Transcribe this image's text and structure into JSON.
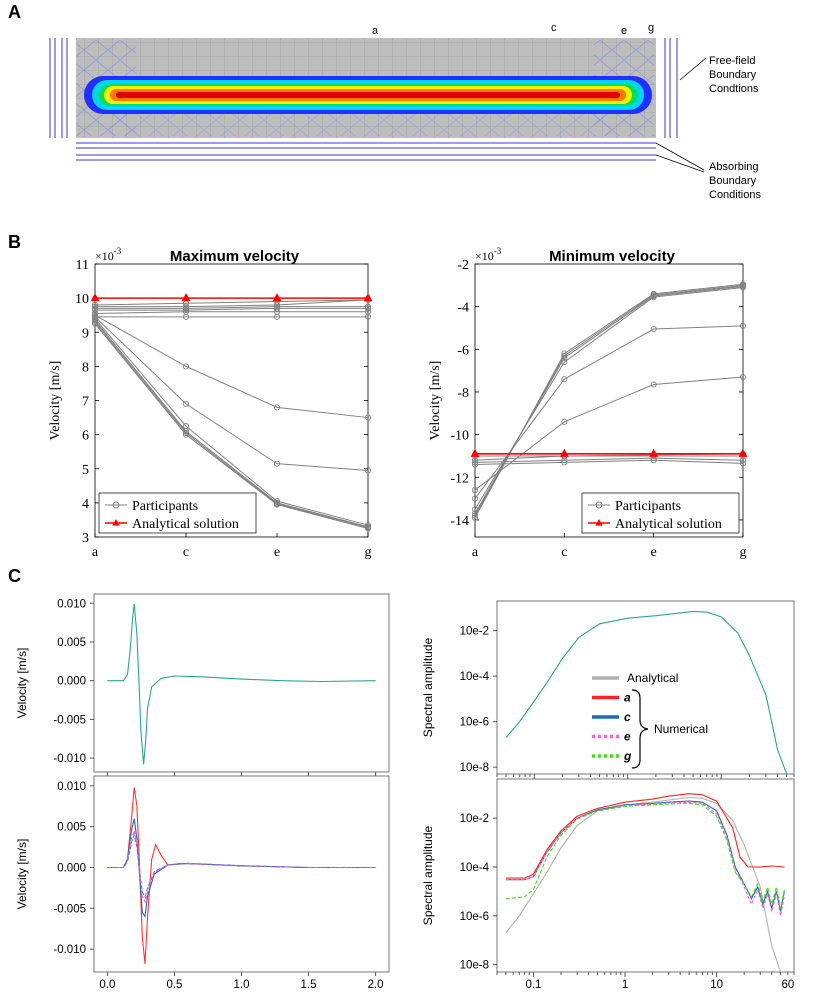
{
  "panels": {
    "A": "A",
    "B": "B",
    "C": "C"
  },
  "panel_a": {
    "section_labels": [
      "a",
      "c",
      "e",
      "g"
    ],
    "annotations": {
      "free_field": [
        "Free-field",
        "Boundary",
        "Condtions"
      ],
      "absorbing": [
        "Absorbing",
        "Boundary",
        "Conditions"
      ]
    },
    "colors": {
      "band_outer": "#2030ff",
      "band_2": "#00d4ff",
      "band_3": "#00e060",
      "band_4": "#ffee00",
      "band_5": "#ff7a00",
      "band_core": "#e00000",
      "mesh": "#b4b4b4"
    }
  },
  "chart_data": [
    {
      "id": "B-max",
      "type": "line",
      "title": "Maximum velocity",
      "ylabel": "Velocity [m/s]",
      "exponent_label": "×10",
      "exponent": "-3",
      "categories": [
        "a",
        "c",
        "e",
        "g"
      ],
      "ylim": [
        3,
        11
      ],
      "yticks": [
        "3",
        "4",
        "5",
        "6",
        "7",
        "8",
        "9",
        "10",
        "11"
      ],
      "series": [
        {
          "name": "Participants",
          "color": "#808080",
          "marker": "circle",
          "lines": [
            [
              9.45,
              9.45,
              9.45,
              9.45
            ],
            [
              9.55,
              9.6,
              9.6,
              9.6
            ],
            [
              9.65,
              9.65,
              9.7,
              9.7
            ],
            [
              9.7,
              9.7,
              9.75,
              9.75
            ],
            [
              9.75,
              9.75,
              9.8,
              9.95
            ],
            [
              9.8,
              9.85,
              9.9,
              9.95
            ],
            [
              9.5,
              8.0,
              6.8,
              6.5
            ],
            [
              9.45,
              6.9,
              5.15,
              4.95
            ],
            [
              9.4,
              6.25,
              4.05,
              3.35
            ],
            [
              9.35,
              6.1,
              4.0,
              3.3
            ],
            [
              9.3,
              6.05,
              3.97,
              3.28
            ],
            [
              9.25,
              6.0,
              3.95,
              3.25
            ]
          ]
        },
        {
          "name": "Analytical solution",
          "color": "#ff0000",
          "marker": "triangle",
          "values": [
            10,
            10,
            10,
            10
          ]
        }
      ],
      "legend": [
        "Participants",
        "Analytical solution"
      ],
      "legend_position": "bottom-left"
    },
    {
      "id": "B-min",
      "type": "line",
      "title": "Minimum velocity",
      "ylabel": "Velocity [m/s]",
      "exponent_label": "×10",
      "exponent": "-3",
      "categories": [
        "a",
        "c",
        "e",
        "g"
      ],
      "ylim": [
        -14.8,
        -2
      ],
      "yticks": [
        "-2",
        "-4",
        "-6",
        "-8",
        "-10",
        "-12",
        "-14"
      ],
      "series": [
        {
          "name": "Participants",
          "color": "#808080",
          "marker": "circle",
          "lines": [
            [
              -11.2,
              -11.0,
              -11.0,
              -11.0
            ],
            [
              -11.3,
              -11.2,
              -11.1,
              -11.2
            ],
            [
              -11.4,
              -11.3,
              -11.2,
              -11.35
            ],
            [
              -11.0,
              -11.0,
              -10.95,
              -10.9
            ],
            [
              -12.6,
              -9.4,
              -7.65,
              -7.3
            ],
            [
              -13.0,
              -7.4,
              -5.05,
              -4.9
            ],
            [
              -13.5,
              -6.6,
              -3.55,
              -3.1
            ],
            [
              -13.7,
              -6.4,
              -3.5,
              -3.05
            ],
            [
              -13.8,
              -6.3,
              -3.45,
              -3.0
            ],
            [
              -13.9,
              -6.2,
              -3.4,
              -2.95
            ]
          ]
        },
        {
          "name": "Analytical solution",
          "color": "#ff0000",
          "marker": "triangle",
          "values": [
            -10.9,
            -10.9,
            -10.9,
            -10.9
          ]
        }
      ],
      "legend": [
        "Participants",
        "Analytical solution"
      ],
      "legend_position": "bottom-right"
    },
    {
      "id": "C-vel-analytical",
      "type": "line",
      "ylabel": "Velocity [m/s]",
      "xlim": [
        -0.1,
        2.1
      ],
      "ylim": [
        -0.0118,
        0.0112
      ],
      "yticks": [
        "0.010",
        "0.005",
        "0.000",
        "-0.005",
        "-0.010"
      ],
      "ytick_values": [
        0.01,
        0.005,
        0,
        -0.005,
        -0.01
      ],
      "series": [
        {
          "name": "Numerical",
          "color": "#2ca58d",
          "x": [
            0,
            0.12,
            0.15,
            0.17,
            0.19,
            0.2,
            0.22,
            0.235,
            0.25,
            0.27,
            0.285,
            0.3,
            0.33,
            0.4,
            0.5,
            0.7,
            1.0,
            1.3,
            1.6,
            2.0
          ],
          "y": [
            0,
            0,
            0.0008,
            0.004,
            0.0085,
            0.0099,
            0.006,
            0.0,
            -0.0065,
            -0.0108,
            -0.008,
            -0.0035,
            -0.0008,
            0.0003,
            0.0006,
            0.0005,
            0.0002,
            0.0,
            -0.0001,
            0
          ]
        }
      ]
    },
    {
      "id": "C-vel-numerical",
      "type": "line",
      "ylabel": "Velocity [m/s]",
      "xlim": [
        -0.1,
        2.1
      ],
      "ylim": [
        -0.0128,
        0.0112
      ],
      "yticks": [
        "0.010",
        "0.005",
        "0.000",
        "-0.005",
        "-0.010"
      ],
      "ytick_values": [
        0.01,
        0.005,
        0,
        -0.005,
        -0.01
      ],
      "xticks": [
        "0.0",
        "0.5",
        "1.0",
        "1.5",
        "2.0"
      ],
      "xtick_values": [
        0,
        0.5,
        1.0,
        1.5,
        2.0
      ],
      "series": [
        {
          "name": "a",
          "color": "#ff3333",
          "x": [
            0,
            0.12,
            0.15,
            0.18,
            0.2,
            0.22,
            0.24,
            0.26,
            0.28,
            0.3,
            0.33,
            0.36,
            0.4,
            0.45,
            0.55,
            0.7,
            1.0,
            1.5,
            2.0
          ],
          "y": [
            0,
            0,
            0.001,
            0.006,
            0.0098,
            0.0075,
            0.0,
            -0.0085,
            -0.0118,
            -0.006,
            0.001,
            0.0028,
            0.0015,
            0.0003,
            0.0005,
            0.0004,
            0.0002,
            0,
            0
          ]
        },
        {
          "name": "c",
          "color": "#1f6fb0",
          "x": [
            0,
            0.12,
            0.15,
            0.18,
            0.2,
            0.22,
            0.24,
            0.26,
            0.28,
            0.3,
            0.35,
            0.45,
            0.6,
            1.0,
            1.5,
            2.0
          ],
          "y": [
            0,
            0,
            0.001,
            0.0045,
            0.006,
            0.0035,
            -0.001,
            -0.0055,
            -0.006,
            -0.0035,
            -0.0008,
            0.0003,
            0.0005,
            0.0002,
            0,
            0
          ]
        },
        {
          "name": "e",
          "color": "#e060e0",
          "dash": "3,2",
          "x": [
            0,
            0.12,
            0.15,
            0.18,
            0.2,
            0.22,
            0.24,
            0.26,
            0.28,
            0.3,
            0.35,
            0.45,
            0.6,
            1.0,
            1.5,
            2.0
          ],
          "y": [
            0,
            0,
            0.0008,
            0.0035,
            0.0045,
            0.003,
            -0.0005,
            -0.0035,
            -0.0042,
            -0.003,
            -0.0006,
            0.0003,
            0.0005,
            0.0002,
            0,
            0
          ]
        },
        {
          "name": "g",
          "color": "#7070e0",
          "dash": "4,2",
          "x": [
            0,
            0.12,
            0.15,
            0.18,
            0.2,
            0.22,
            0.24,
            0.26,
            0.28,
            0.3,
            0.35,
            0.45,
            0.6,
            1.0,
            1.5,
            2.0
          ],
          "y": [
            0,
            0,
            0.0007,
            0.003,
            0.004,
            0.0025,
            -0.0005,
            -0.003,
            -0.0036,
            -0.0025,
            -0.0005,
            0.0003,
            0.0005,
            0.0002,
            0,
            0
          ]
        }
      ]
    },
    {
      "id": "C-spec-analytical",
      "type": "line",
      "ylabel": "Spectral amplitude",
      "xscale": "log",
      "yscale": "log",
      "xlim": [
        0.04,
        60
      ],
      "ylim": [
        5e-09,
        0.2
      ],
      "yticks": [
        "10e-2",
        "10e-4",
        "10e-6",
        "10e-8"
      ],
      "ytick_values": [
        0.01,
        0.0001,
        1e-06,
        1e-08
      ],
      "series": [
        {
          "name": "Numerical",
          "color": "#2ca58d",
          "x": [
            0.05,
            0.07,
            0.1,
            0.14,
            0.2,
            0.3,
            0.5,
            1,
            2,
            3,
            5,
            7,
            10,
            15,
            20,
            30,
            40,
            50
          ],
          "y": [
            2e-07,
            1e-06,
            8e-06,
            6e-05,
            0.0006,
            0.005,
            0.02,
            0.035,
            0.045,
            0.055,
            0.07,
            0.065,
            0.04,
            0.008,
            0.0008,
            1.5e-05,
            6e-08,
            5e-09
          ]
        }
      ],
      "legend": [
        "Analytical",
        "a",
        "c",
        "e",
        "g"
      ],
      "legend_colors": [
        "#b0b0b0",
        "#ff2020",
        "#1f6fb0",
        "#ff66cc",
        "#44dd22"
      ],
      "legend_group_label": "Numerical"
    },
    {
      "id": "C-spec-numerical",
      "type": "line",
      "ylabel": "Spectral amplitude",
      "xscale": "log",
      "yscale": "log",
      "xlim": [
        0.04,
        70
      ],
      "ylim": [
        5e-09,
        0.4
      ],
      "yticks": [
        "10e-2",
        "10e-4",
        "10e-6",
        "10e-8"
      ],
      "ytick_values": [
        0.01,
        0.0001,
        1e-06,
        1e-08
      ],
      "xticks": [
        "0.1",
        "1",
        "10",
        "60"
      ],
      "xtick_values": [
        0.1,
        1,
        10,
        60
      ],
      "series": [
        {
          "name": "Analytical",
          "color": "#b0b0b0",
          "x": [
            0.05,
            0.07,
            0.1,
            0.14,
            0.2,
            0.3,
            0.5,
            1,
            2,
            3,
            5,
            7,
            10,
            15,
            20,
            30,
            40,
            50
          ],
          "y": [
            2e-07,
            1e-06,
            8e-06,
            6e-05,
            0.0006,
            0.005,
            0.02,
            0.035,
            0.045,
            0.055,
            0.07,
            0.065,
            0.04,
            0.008,
            0.0008,
            1.5e-05,
            6e-08,
            5e-09
          ]
        },
        {
          "name": "a",
          "color": "#ff2020",
          "x": [
            0.05,
            0.08,
            0.1,
            0.14,
            0.2,
            0.3,
            0.5,
            1,
            2,
            3,
            5,
            7,
            10,
            15,
            18,
            22,
            30,
            40,
            55
          ],
          "y": [
            3.5e-05,
            3.5e-05,
            5e-05,
            0.0005,
            0.003,
            0.012,
            0.025,
            0.045,
            0.06,
            0.08,
            0.1,
            0.09,
            0.05,
            0.004,
            0.00025,
            0.0001,
            0.0001,
            0.00011,
            0.0001
          ]
        },
        {
          "name": "c",
          "color": "#1f6fb0",
          "x": [
            0.05,
            0.08,
            0.1,
            0.14,
            0.2,
            0.3,
            0.5,
            1,
            2,
            3,
            5,
            7,
            10,
            13,
            16,
            20,
            24,
            28,
            32,
            36,
            40,
            45,
            50,
            55
          ],
          "y": [
            3e-05,
            3e-05,
            4e-05,
            0.0004,
            0.0025,
            0.01,
            0.022,
            0.035,
            0.04,
            0.045,
            0.05,
            0.045,
            0.02,
            0.002,
            0.0001,
            2e-05,
            5e-06,
            1.5e-05,
            3e-06,
            1e-05,
            2e-06,
            1e-05,
            1.5e-06,
            1e-05
          ]
        },
        {
          "name": "e",
          "color": "#ff66cc",
          "dash": "3,2",
          "x": [
            0.05,
            0.08,
            0.1,
            0.14,
            0.2,
            0.3,
            0.5,
            1,
            2,
            3,
            5,
            7,
            10,
            13,
            16,
            20,
            24,
            28,
            32,
            36,
            40,
            45,
            50,
            55
          ],
          "y": [
            3e-05,
            3e-05,
            4e-05,
            0.0004,
            0.0025,
            0.01,
            0.02,
            0.033,
            0.038,
            0.042,
            0.045,
            0.04,
            0.015,
            0.0015,
            8e-05,
            1.5e-05,
            3e-06,
            1.2e-05,
            2e-06,
            8e-06,
            1.5e-06,
            8e-06,
            1e-06,
            7e-06
          ]
        },
        {
          "name": "g",
          "color": "#44dd22",
          "dash": "4,2",
          "x": [
            0.05,
            0.08,
            0.1,
            0.14,
            0.2,
            0.3,
            0.5,
            1,
            2,
            3,
            5,
            7,
            10,
            13,
            16,
            20,
            24,
            28,
            32,
            36,
            40,
            45,
            50,
            55
          ],
          "y": [
            5e-06,
            6e-06,
            1.2e-05,
            0.00025,
            0.002,
            0.009,
            0.02,
            0.03,
            0.035,
            0.038,
            0.04,
            0.035,
            0.012,
            0.0012,
            6e-05,
            2e-05,
            6e-06,
            2e-05,
            4e-06,
            1.5e-05,
            3e-06,
            1.5e-05,
            2e-06,
            1.2e-05
          ]
        }
      ]
    }
  ]
}
